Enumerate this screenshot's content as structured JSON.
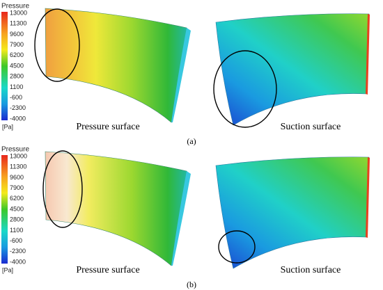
{
  "panels": [
    {
      "label": "(a)",
      "colorbar": {
        "title": "Pressure",
        "ticks": [
          "13000",
          "11300",
          "9600",
          "7900",
          "6200",
          "4500",
          "2800",
          "1100",
          "-600",
          "-2300",
          "-4000"
        ],
        "unit": "[Pa]"
      },
      "surfaces": [
        "Pressure surface",
        "Suction surface"
      ]
    },
    {
      "label": "(b)",
      "colorbar": {
        "title": "Pressure",
        "ticks": [
          "13000",
          "11300",
          "9600",
          "7900",
          "6200",
          "4500",
          "2800",
          "1100",
          "-600",
          "-2300",
          "-4000"
        ],
        "unit": "[Pa]"
      },
      "surfaces": [
        "Pressure surface",
        "Suction surface"
      ]
    }
  ]
}
